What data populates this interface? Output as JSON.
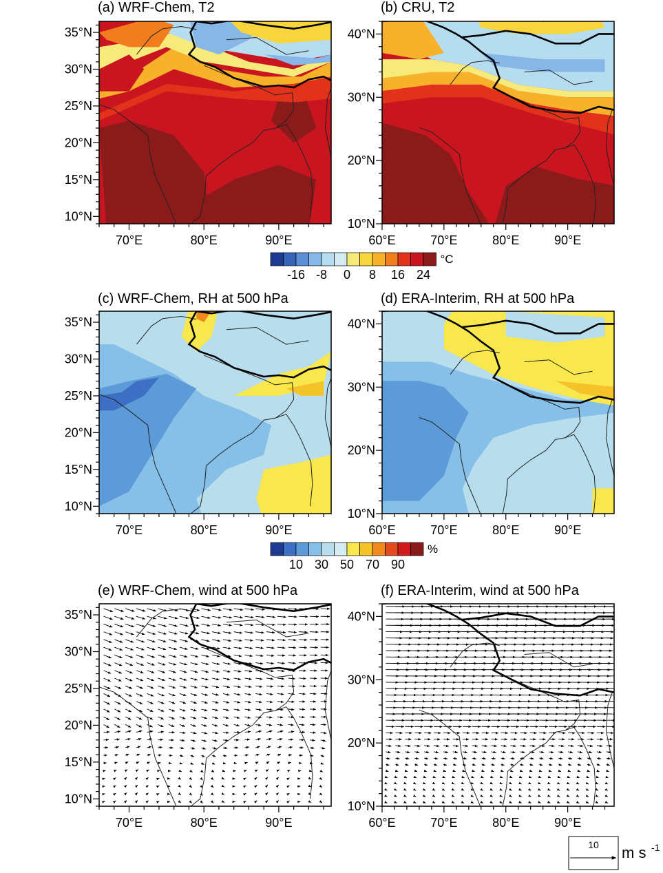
{
  "palettes": {
    "temp": [
      "#1f3a93",
      "#3763b8",
      "#5a8fd6",
      "#86b7e6",
      "#b6dcf0",
      "#d6ecf3",
      "#f5ea7a",
      "#f9d53d",
      "#f8b12a",
      "#f27d1f",
      "#e2321c",
      "#c8151f",
      "#8b1a1a"
    ],
    "rh": [
      "#1f3a93",
      "#3d6fc4",
      "#5d9bd8",
      "#86bfe8",
      "#b8dded",
      "#d5ecf2",
      "#f8e84d",
      "#f6c22a",
      "#f08a1f",
      "#e24a1f",
      "#d01b1e",
      "#8b1a1a"
    ]
  },
  "scale_arrow": {
    "label": "10",
    "unit": "m s",
    "unit_sup": "-1"
  },
  "chart_data": [
    {
      "panel": "a",
      "type": "heatmap",
      "title": "(a) WRF-Chem, T2",
      "xlim": [
        66,
        97
      ],
      "ylim": [
        9,
        36.5
      ],
      "xticks": [
        {
          "v": 70,
          "l": "70°E"
        },
        {
          "v": 80,
          "l": "80°E"
        },
        {
          "v": 90,
          "l": "90°E"
        }
      ],
      "yticks": [
        {
          "v": 10,
          "l": "10°N"
        },
        {
          "v": 15,
          "l": "15°N"
        },
        {
          "v": 20,
          "l": "20°N"
        },
        {
          "v": 25,
          "l": "25°N"
        },
        {
          "v": 30,
          "l": "30°N"
        },
        {
          "v": 35,
          "l": "35°N"
        }
      ],
      "variable": "T2",
      "palette": "temp",
      "colorbar": {
        "labels": [
          "-16",
          "-8",
          "0",
          "8",
          "16",
          "24"
        ],
        "unit": "°C"
      }
    },
    {
      "panel": "b",
      "type": "heatmap",
      "title": "(b) CRU, T2",
      "xlim": [
        60,
        97.5
      ],
      "ylim": [
        10,
        42
      ],
      "xticks": [
        {
          "v": 60,
          "l": "60°E"
        },
        {
          "v": 70,
          "l": "70°E"
        },
        {
          "v": 80,
          "l": "80°E"
        },
        {
          "v": 90,
          "l": "90°E"
        }
      ],
      "yticks": [
        {
          "v": 10,
          "l": "10°N"
        },
        {
          "v": 20,
          "l": "20°N"
        },
        {
          "v": 30,
          "l": "30°N"
        },
        {
          "v": 40,
          "l": "40°N"
        }
      ],
      "variable": "T2",
      "palette": "temp"
    },
    {
      "panel": "c",
      "type": "heatmap",
      "title": "(c) WRF-Chem, RH at 500 hPa",
      "xlim": [
        66,
        97
      ],
      "ylim": [
        9,
        36.5
      ],
      "xticks": [
        {
          "v": 70,
          "l": "70°E"
        },
        {
          "v": 80,
          "l": "80°E"
        },
        {
          "v": 90,
          "l": "90°E"
        }
      ],
      "yticks": [
        {
          "v": 10,
          "l": "10°N"
        },
        {
          "v": 15,
          "l": "15°N"
        },
        {
          "v": 20,
          "l": "20°N"
        },
        {
          "v": 25,
          "l": "25°N"
        },
        {
          "v": 30,
          "l": "30°N"
        },
        {
          "v": 35,
          "l": "35°N"
        }
      ],
      "variable": "RH",
      "palette": "rh",
      "colorbar": {
        "labels": [
          "10",
          "30",
          "50",
          "70",
          "90"
        ],
        "unit": "%"
      }
    },
    {
      "panel": "d",
      "type": "heatmap",
      "title": "(d) ERA-Interim, RH at 500 hPa",
      "xlim": [
        60,
        97.5
      ],
      "ylim": [
        10,
        42
      ],
      "xticks": [
        {
          "v": 60,
          "l": "60°E"
        },
        {
          "v": 70,
          "l": "70°E"
        },
        {
          "v": 80,
          "l": "80°E"
        },
        {
          "v": 90,
          "l": "90°E"
        }
      ],
      "yticks": [
        {
          "v": 10,
          "l": "10°N"
        },
        {
          "v": 20,
          "l": "20°N"
        },
        {
          "v": 30,
          "l": "30°N"
        },
        {
          "v": 40,
          "l": "40°N"
        }
      ],
      "variable": "RH",
      "palette": "rh"
    },
    {
      "panel": "e",
      "type": "vector",
      "title": "(e) WRF-Chem, wind at 500 hPa",
      "xlim": [
        66,
        97
      ],
      "ylim": [
        9,
        36.5
      ],
      "xticks": [
        {
          "v": 70,
          "l": "70°E"
        },
        {
          "v": 80,
          "l": "80°E"
        },
        {
          "v": 90,
          "l": "90°E"
        }
      ],
      "yticks": [
        {
          "v": 10,
          "l": "10°N"
        },
        {
          "v": 15,
          "l": "15°N"
        },
        {
          "v": 20,
          "l": "20°N"
        },
        {
          "v": 25,
          "l": "25°N"
        },
        {
          "v": 30,
          "l": "30°N"
        },
        {
          "v": 35,
          "l": "35°N"
        }
      ],
      "variable": "wind"
    },
    {
      "panel": "f",
      "type": "vector",
      "title": "(f) ERA-Interim, wind at 500 hPa",
      "xlim": [
        60,
        97.5
      ],
      "ylim": [
        10,
        42
      ],
      "xticks": [
        {
          "v": 60,
          "l": "60°E"
        },
        {
          "v": 70,
          "l": "70°E"
        },
        {
          "v": 80,
          "l": "80°E"
        },
        {
          "v": 90,
          "l": "90°E"
        }
      ],
      "yticks": [
        {
          "v": 10,
          "l": "10°N"
        },
        {
          "v": 20,
          "l": "20°N"
        },
        {
          "v": 30,
          "l": "30°N"
        },
        {
          "v": 40,
          "l": "40°N"
        }
      ],
      "variable": "wind"
    }
  ]
}
